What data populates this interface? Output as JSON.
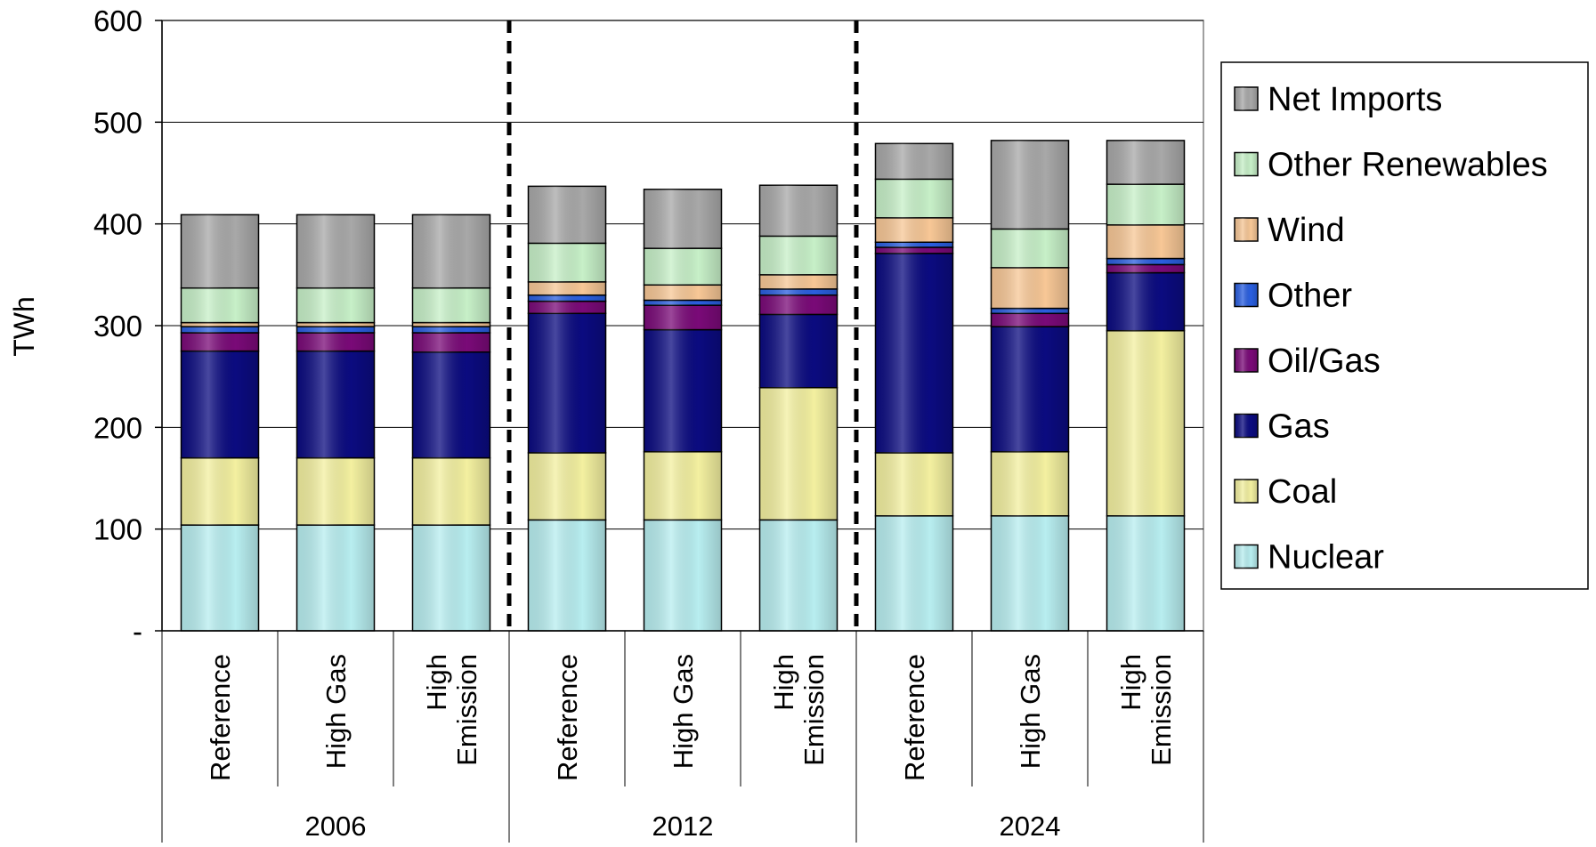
{
  "chart_data": {
    "type": "bar",
    "stacked": true,
    "ylabel": "TWh",
    "ylim": [
      0,
      600
    ],
    "yticks": [
      {
        "value": 0,
        "label": "-"
      },
      {
        "value": 100,
        "label": "100"
      },
      {
        "value": 200,
        "label": "200"
      },
      {
        "value": 300,
        "label": "300"
      },
      {
        "value": 400,
        "label": "400"
      },
      {
        "value": 500,
        "label": "500"
      },
      {
        "value": 600,
        "label": "600"
      }
    ],
    "grid": true,
    "legend_position": "right",
    "groups": [
      "2006",
      "2012",
      "2024"
    ],
    "categories": [
      {
        "group": "2006",
        "label": [
          "Reference"
        ]
      },
      {
        "group": "2006",
        "label": [
          "High Gas"
        ]
      },
      {
        "group": "2006",
        "label": [
          "High",
          "Emission"
        ]
      },
      {
        "group": "2012",
        "label": [
          "Reference"
        ]
      },
      {
        "group": "2012",
        "label": [
          "High Gas"
        ]
      },
      {
        "group": "2012",
        "label": [
          "High",
          "Emission"
        ]
      },
      {
        "group": "2024",
        "label": [
          "Reference"
        ]
      },
      {
        "group": "2024",
        "label": [
          "High Gas"
        ]
      },
      {
        "group": "2024",
        "label": [
          "High",
          "Emission"
        ]
      }
    ],
    "series": [
      {
        "name": "Nuclear",
        "color": "#b8eef0",
        "values": [
          104,
          104,
          104,
          109,
          109,
          109,
          113,
          113,
          113
        ]
      },
      {
        "name": "Coal",
        "color": "#f3f0a0",
        "values": [
          66,
          66,
          66,
          66,
          67,
          130,
          62,
          63,
          182
        ]
      },
      {
        "name": "Gas",
        "color": "#0b0b80",
        "values": [
          105,
          105,
          104,
          137,
          120,
          72,
          196,
          123,
          57
        ]
      },
      {
        "name": "Oil/Gas",
        "color": "#7a0a78",
        "values": [
          18,
          18,
          19,
          12,
          24,
          19,
          6,
          13,
          8
        ]
      },
      {
        "name": "Other",
        "color": "#2a5fe0",
        "values": [
          6,
          6,
          6,
          6,
          5,
          6,
          5,
          5,
          6
        ]
      },
      {
        "name": "Wind",
        "color": "#f7c796",
        "values": [
          4,
          4,
          4,
          13,
          15,
          14,
          24,
          40,
          33
        ]
      },
      {
        "name": "Other Renewables",
        "color": "#c7f0c8",
        "values": [
          34,
          34,
          34,
          38,
          36,
          38,
          38,
          38,
          40
        ]
      },
      {
        "name": "Net Imports",
        "color": "#a8a8a8",
        "values": [
          72,
          72,
          72,
          56,
          58,
          50,
          35,
          87,
          43
        ]
      }
    ],
    "legend_order": [
      "Net Imports",
      "Other Renewables",
      "Wind",
      "Other",
      "Oil/Gas",
      "Gas",
      "Coal",
      "Nuclear"
    ],
    "group_separators": "dashed vertical lines between year groups"
  }
}
